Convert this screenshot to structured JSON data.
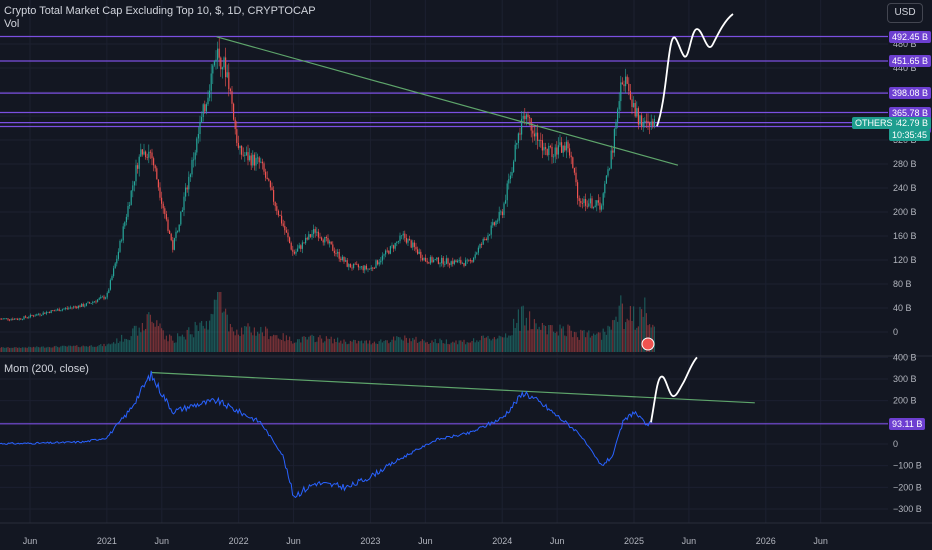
{
  "header": {
    "title": "Crypto Total Market Cap Excluding Top 10, $, 1D, CRYPTOCAP",
    "vol_label": "Vol",
    "indicator_label": "Mom (200, close)"
  },
  "currency": "USD",
  "colors": {
    "background": "#131722",
    "up": "#26a69a",
    "down": "#ef5350",
    "level_line": "#7b4fe0",
    "trend_line": "#5ea56b",
    "momentum": "#2962ff",
    "projection": "#ffffff"
  },
  "price_axis": {
    "ticks": [
      "480 B",
      "440 B",
      "400 B",
      "360 B",
      "320 B",
      "280 B",
      "240 B",
      "200 B",
      "160 B",
      "120 B",
      "80 B",
      "40 B",
      "0"
    ]
  },
  "price_level_labels": [
    "492.45 B",
    "451.65 B",
    "398.08 B",
    "365.78 B",
    "348.96 B",
    "342.49 B"
  ],
  "last_price": {
    "symbol": "OTHERS",
    "value": "342.79 B",
    "countdown": "10:35:45"
  },
  "mom_axis": {
    "ticks": [
      "400 B",
      "300 B",
      "200 B",
      "100 B",
      "0",
      "−100 B",
      "−200 B",
      "−300 B"
    ],
    "level_label": "93.11 B"
  },
  "time_axis": [
    "Jun",
    "2021",
    "Jun",
    "2022",
    "Jun",
    "2023",
    "Jun",
    "2024",
    "Jun",
    "2025",
    "Jun",
    "2026",
    "Jun"
  ],
  "chart_data": [
    {
      "type": "candlestick",
      "title": "Crypto Total Market Cap Excluding Top 10, $, 1D, CRYPTOCAP",
      "unit": "B USD",
      "ylim": [
        0,
        520
      ],
      "x": [
        "2020-05",
        "2020-08",
        "2020-11",
        "2021-01",
        "2021-02",
        "2021-04",
        "2021-05",
        "2021-07",
        "2021-09",
        "2021-11",
        "2021-12",
        "2022-01",
        "2022-03",
        "2022-05",
        "2022-06",
        "2022-08",
        "2022-11",
        "2023-01",
        "2023-04",
        "2023-06",
        "2023-10",
        "2024-01",
        "2024-03",
        "2024-05",
        "2024-07",
        "2024-08",
        "2024-10",
        "2024-11",
        "2024-12",
        "2025-01",
        "2025-02"
      ],
      "y": [
        22,
        35,
        45,
        60,
        130,
        300,
        300,
        140,
        300,
        470,
        430,
        300,
        280,
        180,
        130,
        170,
        110,
        105,
        160,
        120,
        115,
        200,
        370,
        300,
        310,
        220,
        210,
        300,
        430,
        370,
        343
      ],
      "volume_relative": "spikes in May 2021, Nov 2021, Mar 2024, Dec 2024",
      "horizontal_levels": [
        492.45,
        451.65,
        398.08,
        365.78,
        348.96,
        342.49
      ],
      "trendline": {
        "from": [
          "2021-11",
          492
        ],
        "to": [
          "2025-05",
          278
        ]
      },
      "hand_drawn_projection": "upward wave from about 343 B in Feb 2025 toward 520 B+ by Aug 2025"
    },
    {
      "type": "line",
      "title": "Mom (200, close)",
      "unit": "B",
      "ylim": [
        -330,
        410
      ],
      "x": [
        "2020-05",
        "2020-08",
        "2020-11",
        "2021-01",
        "2021-03",
        "2021-05",
        "2021-07",
        "2021-09",
        "2021-11",
        "2022-01",
        "2022-03",
        "2022-05",
        "2022-06",
        "2022-08",
        "2022-11",
        "2023-01",
        "2023-04",
        "2023-07",
        "2023-10",
        "2024-01",
        "2024-03",
        "2024-05",
        "2024-08",
        "2024-10",
        "2024-11",
        "2024-12",
        "2025-01",
        "2025-02"
      ],
      "y": [
        2,
        5,
        10,
        30,
        150,
        320,
        150,
        180,
        200,
        150,
        100,
        -50,
        -240,
        -180,
        -200,
        -150,
        -60,
        20,
        50,
        120,
        240,
        170,
        50,
        -100,
        -60,
        100,
        150,
        93
      ],
      "horizontal_level": 93.11,
      "trendline": {
        "from": [
          "2021-05",
          330
        ],
        "to": [
          "2025-12",
          190
        ]
      },
      "hand_drawn_projection": "upward wave from about 93 B in Feb 2025 toward 400 B by Jun 2025"
    }
  ]
}
